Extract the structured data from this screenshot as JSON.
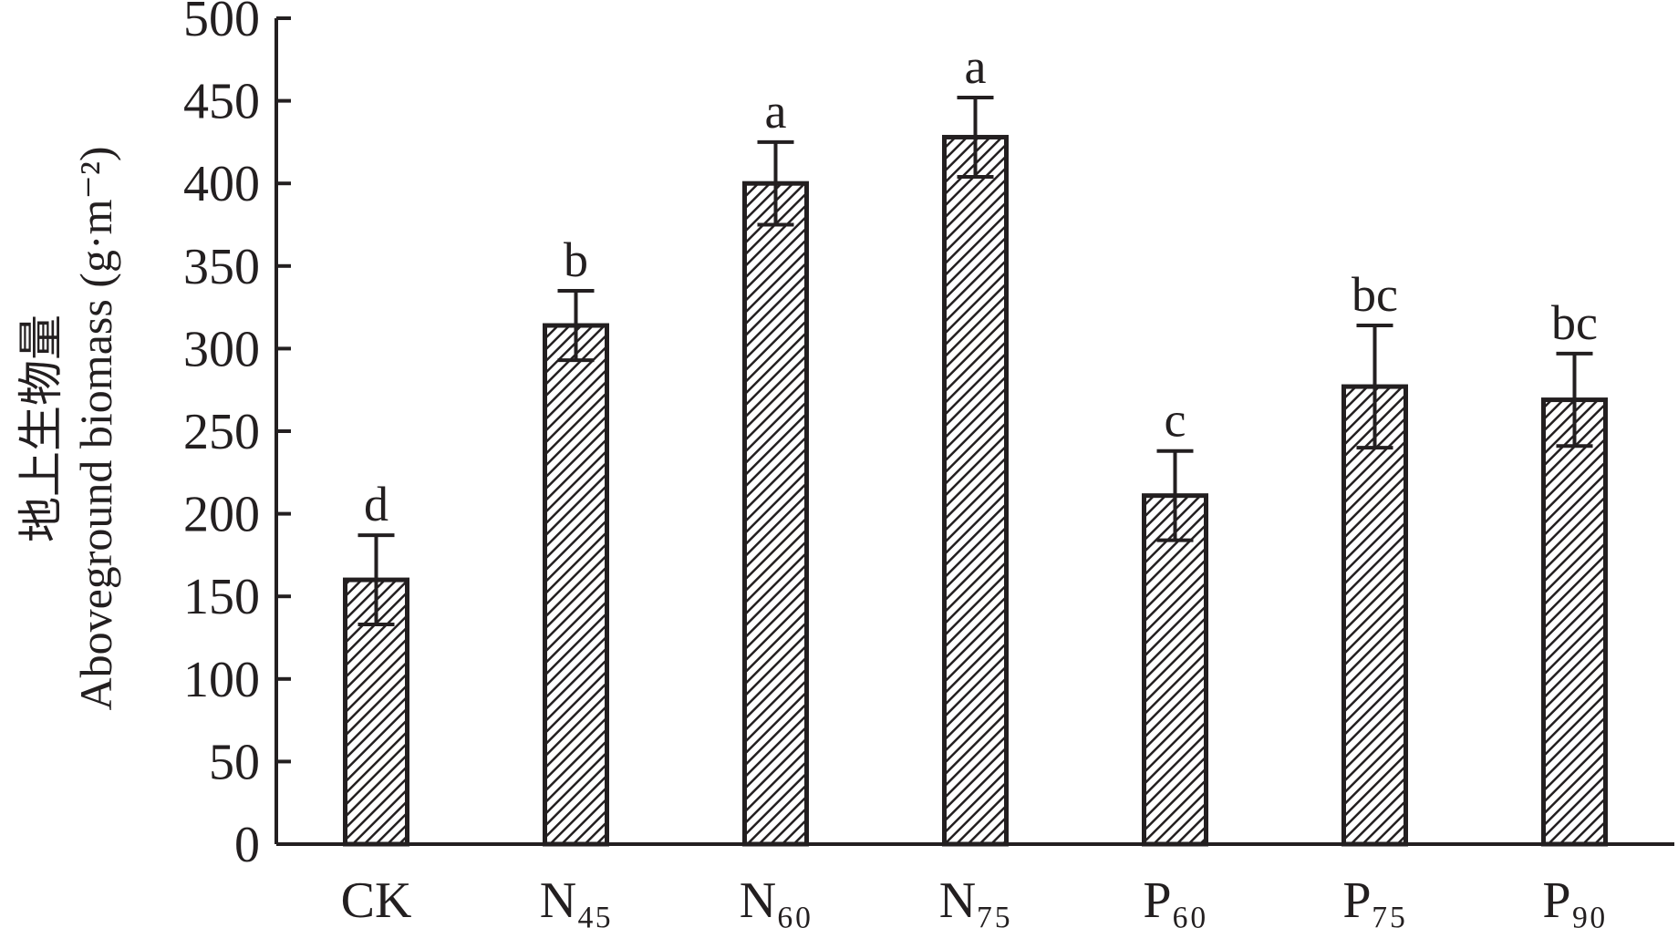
{
  "chart_data": {
    "type": "bar",
    "y_label_cn": "地上生物量",
    "y_label": "Aboveground biomass (g·m⁻²)",
    "categories": [
      "CK",
      "N₄₅",
      "N₆₀",
      "N₇₅",
      "P₆₀",
      "P₇₅",
      "P₉₀"
    ],
    "values": [
      160,
      314,
      400,
      428,
      211,
      277,
      269
    ],
    "errors": [
      27,
      21,
      25,
      24,
      27,
      37,
      28
    ],
    "letters": [
      "d",
      "b",
      "a",
      "a",
      "c",
      "bc",
      "bc"
    ],
    "color": "#231f20",
    "ylim": [
      0,
      500
    ],
    "yticks": [
      0,
      50,
      100,
      150,
      200,
      250,
      300,
      350,
      400,
      450,
      500
    ],
    "grid": false
  }
}
